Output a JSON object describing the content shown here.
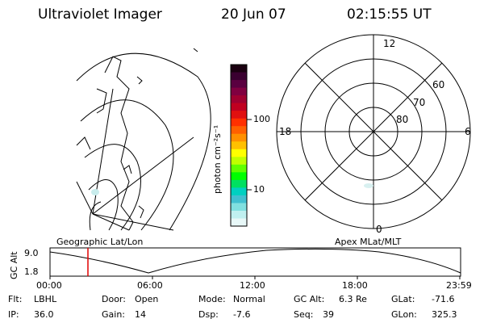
{
  "header": {
    "instrument": "Ultraviolet Imager",
    "date": "20 Jun 07",
    "time": "02:15:55 UT"
  },
  "colorbar": {
    "title": "photon cm⁻²s⁻¹",
    "tick_high": "100",
    "tick_low": "10",
    "colors": [
      "#1a0010",
      "#3a0030",
      "#5a0040",
      "#800040",
      "#a00030",
      "#c00020",
      "#e01010",
      "#ff3000",
      "#ff6000",
      "#ff9000",
      "#ffc000",
      "#ffff00",
      "#c0ff00",
      "#60ff00",
      "#00ff00",
      "#00e060",
      "#00d0c0",
      "#40c0d0",
      "#80e0e0",
      "#c0f0f0",
      "#e8f8f8"
    ]
  },
  "geo_map": {
    "label": "Geographic Lat/Lon"
  },
  "polar_map": {
    "label": "Apex MLat/MLT",
    "mlt_labels": {
      "top": "12",
      "bottom": "0",
      "left": "18",
      "right": "6"
    },
    "lat_labels": [
      "60",
      "70",
      "80"
    ]
  },
  "timeline": {
    "ylabel": "GC Alt",
    "y_ticks": [
      "9.0",
      "1.8"
    ],
    "x_ticks": [
      "00:00",
      "06:00",
      "12:00",
      "18:00",
      "23:59"
    ],
    "cursor_time": "02:15:55"
  },
  "status": {
    "row1": [
      {
        "key": "Flt:",
        "val": "LBHL"
      },
      {
        "key": "Door:",
        "val": "Open"
      },
      {
        "key": "Mode:",
        "val": "Normal"
      },
      {
        "key": "GC Alt:",
        "val": "6.3 Re"
      },
      {
        "key": "GLat:",
        "val": "-71.6"
      }
    ],
    "row2": [
      {
        "key": "IP:",
        "val": "36.0"
      },
      {
        "key": "Gain:",
        "val": "14"
      },
      {
        "key": "Dsp:",
        "val": "-7.6"
      },
      {
        "key": "Seq:",
        "val": "39"
      },
      {
        "key": "GLon:",
        "val": "325.3"
      }
    ]
  }
}
